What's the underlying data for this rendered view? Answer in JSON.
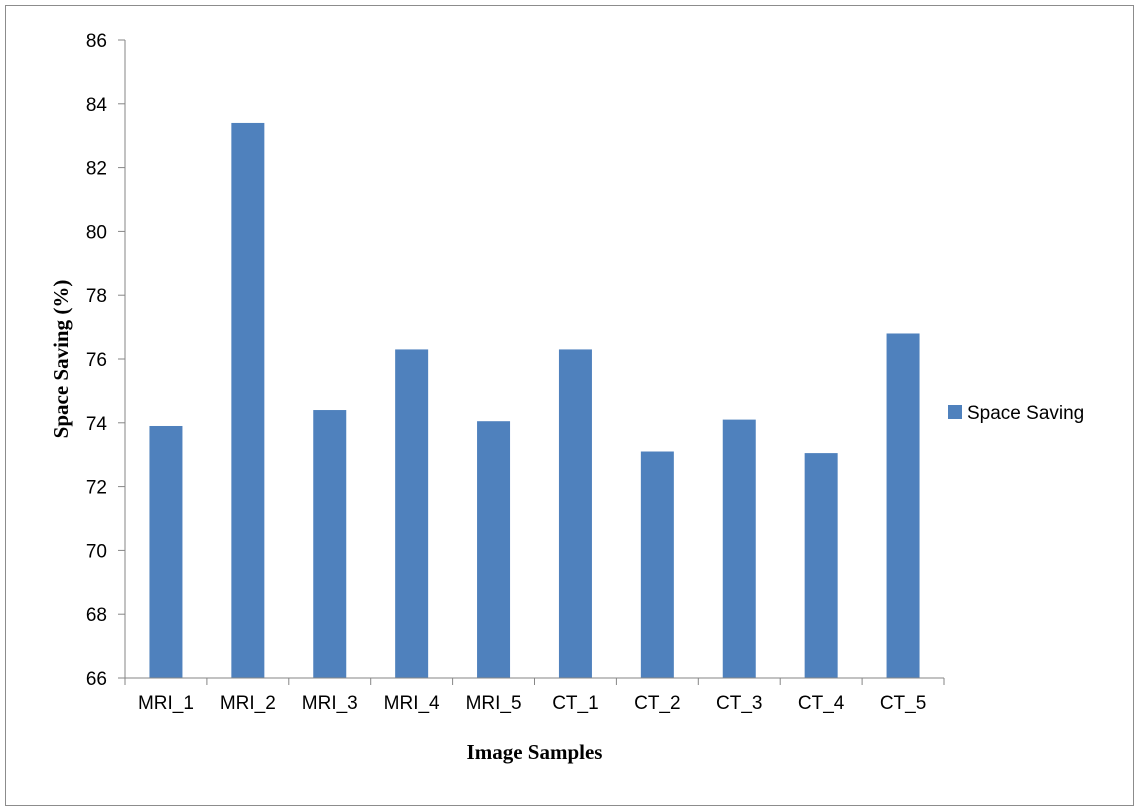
{
  "chart_data": {
    "type": "bar",
    "title": "",
    "xlabel": "Image Samples",
    "ylabel": "Space Saving (%)",
    "categories": [
      "MRI_1",
      "MRI_2",
      "MRI_3",
      "MRI_4",
      "MRI_5",
      "CT_1",
      "CT_2",
      "CT_3",
      "CT_4",
      "CT_5"
    ],
    "series": [
      {
        "name": "Space Saving",
        "color": "#4F81BD",
        "values": [
          73.9,
          83.4,
          74.4,
          76.3,
          74.05,
          76.3,
          73.1,
          74.1,
          73.05,
          76.8
        ]
      }
    ],
    "ylim": [
      66,
      86
    ],
    "yticks": [
      "66",
      "68",
      "70",
      "72",
      "74",
      "76",
      "78",
      "80",
      "82",
      "84",
      "86"
    ],
    "grid": false,
    "legend_position": "right"
  }
}
